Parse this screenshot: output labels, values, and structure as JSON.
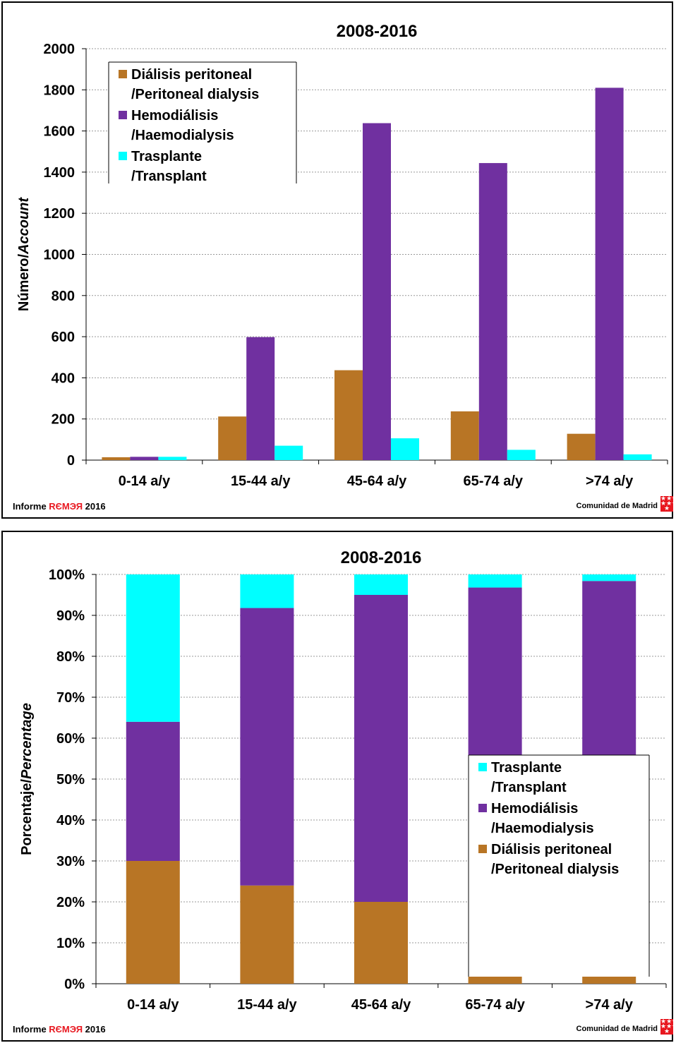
{
  "colors": {
    "peritoneal": "#B87525",
    "hemodialysis": "#7030A0",
    "transplant": "#00FFFF",
    "grid": "#999999",
    "brand_red": "#e8171f"
  },
  "footer": {
    "informe": "Informe",
    "brand": "RЄMЭЯ",
    "year": "2016",
    "right": "Comunidad de Madrid"
  },
  "chart_data": [
    {
      "type": "bar",
      "title": "2008-2016",
      "ylabel": "Número/Account",
      "ylabel_parts": [
        "Número/",
        "Account"
      ],
      "ylim": [
        0,
        2000
      ],
      "yticks": [
        0,
        200,
        400,
        600,
        800,
        1000,
        1200,
        1400,
        1600,
        1800,
        2000
      ],
      "ytick_labels": [
        "0",
        "200",
        "400",
        "600",
        "800",
        "1000",
        "1200",
        "1400",
        "1600",
        "1800",
        "2000"
      ],
      "categories": [
        "0-14 a/y",
        "15-44 a/y",
        "45-64 a/y",
        "65-74 a/y",
        ">74 a/y"
      ],
      "series": [
        {
          "name": "Diálisis peritoneal /Peritoneal dialysis",
          "legend_lines": [
            "Diálisis peritoneal",
            "/Peritoneal dialysis"
          ],
          "values": [
            14,
            212,
            437,
            237,
            128
          ]
        },
        {
          "name": "Hemodiálisis /Haemodialysis",
          "legend_lines": [
            "Hemodiálisis",
            "/Haemodialysis"
          ],
          "values": [
            16,
            598,
            1638,
            1444,
            1810
          ]
        },
        {
          "name": "Trasplante /Transplant",
          "legend_lines": [
            "Trasplante",
            "/Transplant"
          ],
          "values": [
            16,
            70,
            106,
            50,
            28
          ]
        }
      ],
      "grid": true,
      "legend": "top-left"
    },
    {
      "type": "bar",
      "stacked": true,
      "title": "2008-2016",
      "ylabel": "Porcentaje/Percentage",
      "ylabel_parts": [
        "Porcentaje/",
        "Percentage"
      ],
      "ylim": [
        0,
        100
      ],
      "yticks": [
        0,
        10,
        20,
        30,
        40,
        50,
        60,
        70,
        80,
        90,
        100
      ],
      "ytick_labels": [
        "0%",
        "10%",
        "20%",
        "30%",
        "40%",
        "50%",
        "60%",
        "70%",
        "80%",
        "90%",
        "100%"
      ],
      "categories": [
        "0-14 a/y",
        "15-44 a/y",
        "45-64 a/y",
        "65-74 a/y",
        ">74 a/y"
      ],
      "series": [
        {
          "name": "Diálisis peritoneal /Peritoneal dialysis",
          "legend_lines": [
            "Diálisis peritoneal",
            "/Peritoneal dialysis"
          ],
          "values": [
            30,
            24,
            20,
            13.7,
            6.5
          ]
        },
        {
          "name": "Hemodiálisis /Haemodialysis",
          "legend_lines": [
            "Hemodiálisis",
            "/Haemodialysis"
          ],
          "values": [
            34,
            67.8,
            75,
            83.1,
            91.9
          ]
        },
        {
          "name": "Trasplante /Transplant",
          "legend_lines": [
            "Trasplante",
            "/Transplant"
          ],
          "values": [
            36,
            8.2,
            5,
            3.2,
            1.6
          ]
        }
      ],
      "legend_order": [
        2,
        1,
        0
      ],
      "grid": true,
      "legend": "right"
    }
  ]
}
